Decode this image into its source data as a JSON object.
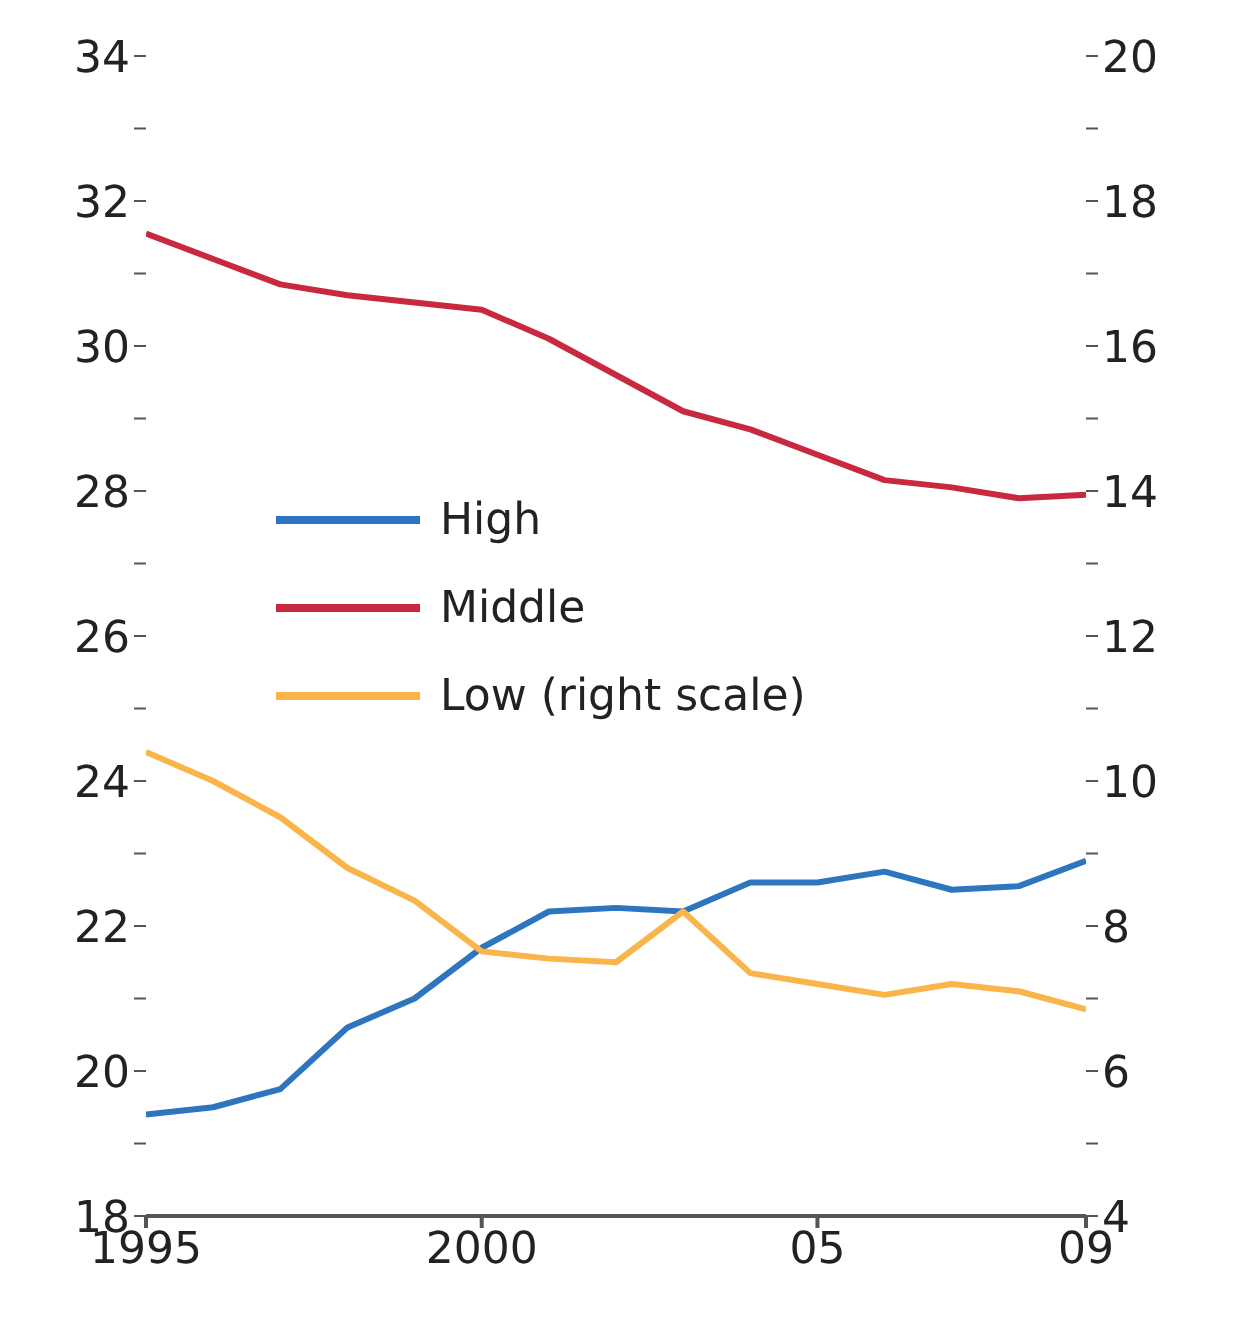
{
  "chart_data": {
    "type": "line",
    "x": [
      1995,
      1996,
      1997,
      1998,
      1999,
      2000,
      2001,
      2002,
      2003,
      2004,
      2005,
      2006,
      2007,
      2008,
      2009
    ],
    "series": [
      {
        "name": "High",
        "color": "#2e75c0",
        "values": [
          19.4,
          19.5,
          19.75,
          20.6,
          21.0,
          21.7,
          22.2,
          22.25,
          22.2,
          22.6,
          22.6,
          22.75,
          22.5,
          22.55,
          22.9
        ]
      },
      {
        "name": "Middle",
        "color": "#c8293f",
        "values": [
          31.55,
          31.2,
          30.85,
          30.7,
          30.6,
          30.5,
          30.1,
          29.6,
          29.1,
          28.85,
          28.5,
          28.15,
          28.05,
          27.9,
          27.95
        ]
      },
      {
        "name": "Low (right scale)",
        "color": "#f9b54a",
        "axis": "y2",
        "values": [
          10.4,
          10.0,
          9.5,
          8.8,
          8.35,
          7.65,
          7.55,
          7.5,
          8.2,
          7.35,
          7.2,
          7.05,
          7.2,
          7.1,
          6.85
        ]
      }
    ],
    "xlim": [
      1995,
      2009
    ],
    "xticks": [
      1995,
      2000,
      {
        "value": 2005,
        "label": "05"
      },
      {
        "value": 2009,
        "label": "09"
      }
    ],
    "ylim": [
      18,
      34
    ],
    "yticks": [
      18,
      {
        "value": 19,
        "label": null
      },
      20,
      {
        "value": 21,
        "label": null
      },
      22,
      {
        "value": 23,
        "label": null
      },
      24,
      {
        "value": 25,
        "label": null
      },
      26,
      {
        "value": 27,
        "label": null
      },
      28,
      {
        "value": 29,
        "label": null
      },
      30,
      {
        "value": 31,
        "label": null
      },
      32,
      {
        "value": 33,
        "label": null
      },
      34
    ],
    "y2lim": [
      4,
      20
    ],
    "y2ticks": [
      4,
      {
        "value": 5,
        "label": null
      },
      6,
      {
        "value": 7,
        "label": null
      },
      8,
      {
        "value": 9,
        "label": null
      },
      10,
      {
        "value": 11,
        "label": null
      },
      12,
      {
        "value": 13,
        "label": null
      },
      14,
      {
        "value": 15,
        "label": null
      },
      16,
      {
        "value": 17,
        "label": null
      },
      18,
      {
        "value": 19,
        "label": null
      },
      20
    ],
    "legend": "center left",
    "marker": "none",
    "line_style": "solid"
  }
}
